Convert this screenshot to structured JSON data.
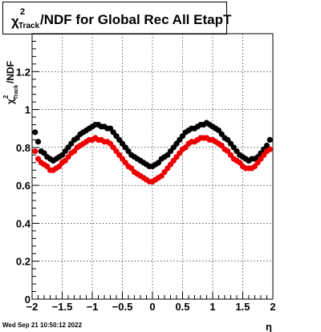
{
  "title": {
    "chi": "χ",
    "sup": "2",
    "sub": "Track",
    "rest": "/NDF for Global Rec All EtapT"
  },
  "timestamp": "Wed Sep 21 10:50:12 2022",
  "chart_data": {
    "type": "scatter",
    "title": "χ²_Track/NDF for Global Rec All EtapT",
    "xlabel": "η",
    "ylabel": {
      "chi": "χ",
      "sup": "2",
      "sub": "Track",
      "rest": "/NDF"
    },
    "xlim": [
      -2,
      2
    ],
    "ylim": [
      0,
      1.4
    ],
    "x_ticks": [
      {
        "v": -2,
        "label": "−2"
      },
      {
        "v": -1.5,
        "label": "−1.5"
      },
      {
        "v": -1,
        "label": "−1"
      },
      {
        "v": -0.5,
        "label": "−0.5"
      },
      {
        "v": 0,
        "label": "0"
      },
      {
        "v": 0.5,
        "label": "0.5"
      },
      {
        "v": 1,
        "label": "1"
      },
      {
        "v": 1.5,
        "label": "1.5"
      },
      {
        "v": 2,
        "label": "2"
      }
    ],
    "y_ticks": [
      {
        "v": 0,
        "label": "0"
      },
      {
        "v": 0.2,
        "label": "0.2"
      },
      {
        "v": 0.4,
        "label": "0.4"
      },
      {
        "v": 0.6,
        "label": "0.6"
      },
      {
        "v": 0.8,
        "label": "0.8"
      },
      {
        "v": 1,
        "label": "1"
      },
      {
        "v": 1.2,
        "label": "1.2"
      }
    ],
    "grid": true,
    "series": [
      {
        "color": "#000000",
        "x": [
          -1.95,
          -1.9,
          -1.85,
          -1.8,
          -1.75,
          -1.7,
          -1.65,
          -1.6,
          -1.55,
          -1.5,
          -1.45,
          -1.4,
          -1.35,
          -1.3,
          -1.25,
          -1.2,
          -1.15,
          -1.1,
          -1.05,
          -1.0,
          -0.95,
          -0.9,
          -0.85,
          -0.8,
          -0.75,
          -0.7,
          -0.65,
          -0.6,
          -0.55,
          -0.5,
          -0.45,
          -0.4,
          -0.35,
          -0.3,
          -0.25,
          -0.2,
          -0.15,
          -0.1,
          -0.05,
          0.0,
          0.05,
          0.1,
          0.15,
          0.2,
          0.25,
          0.3,
          0.35,
          0.4,
          0.45,
          0.5,
          0.55,
          0.6,
          0.65,
          0.7,
          0.75,
          0.8,
          0.85,
          0.9,
          0.95,
          1.0,
          1.05,
          1.1,
          1.15,
          1.2,
          1.25,
          1.3,
          1.35,
          1.4,
          1.45,
          1.5,
          1.55,
          1.6,
          1.65,
          1.7,
          1.75,
          1.8,
          1.85,
          1.9,
          1.95
        ],
        "y": [
          0.88,
          0.83,
          0.78,
          0.77,
          0.75,
          0.74,
          0.73,
          0.74,
          0.75,
          0.76,
          0.78,
          0.8,
          0.82,
          0.84,
          0.85,
          0.87,
          0.88,
          0.89,
          0.9,
          0.91,
          0.92,
          0.92,
          0.91,
          0.91,
          0.9,
          0.9,
          0.88,
          0.86,
          0.84,
          0.82,
          0.8,
          0.78,
          0.76,
          0.75,
          0.74,
          0.73,
          0.72,
          0.71,
          0.7,
          0.7,
          0.71,
          0.72,
          0.74,
          0.75,
          0.76,
          0.78,
          0.8,
          0.82,
          0.84,
          0.86,
          0.88,
          0.89,
          0.9,
          0.9,
          0.91,
          0.92,
          0.92,
          0.93,
          0.92,
          0.91,
          0.9,
          0.89,
          0.87,
          0.85,
          0.84,
          0.82,
          0.8,
          0.78,
          0.76,
          0.75,
          0.74,
          0.73,
          0.74,
          0.74,
          0.75,
          0.77,
          0.79,
          0.81,
          0.84
        ]
      },
      {
        "color": "#ee0000",
        "x": [
          -1.95,
          -1.9,
          -1.85,
          -1.8,
          -1.75,
          -1.7,
          -1.65,
          -1.6,
          -1.55,
          -1.5,
          -1.45,
          -1.4,
          -1.35,
          -1.3,
          -1.25,
          -1.2,
          -1.15,
          -1.1,
          -1.05,
          -1.0,
          -0.95,
          -0.9,
          -0.85,
          -0.8,
          -0.75,
          -0.7,
          -0.65,
          -0.6,
          -0.55,
          -0.5,
          -0.45,
          -0.4,
          -0.35,
          -0.3,
          -0.25,
          -0.2,
          -0.15,
          -0.1,
          -0.05,
          0.0,
          0.05,
          0.1,
          0.15,
          0.2,
          0.25,
          0.3,
          0.35,
          0.4,
          0.45,
          0.5,
          0.55,
          0.6,
          0.65,
          0.7,
          0.75,
          0.8,
          0.85,
          0.9,
          0.95,
          1.0,
          1.05,
          1.1,
          1.15,
          1.2,
          1.25,
          1.3,
          1.35,
          1.4,
          1.45,
          1.5,
          1.55,
          1.6,
          1.65,
          1.7,
          1.75,
          1.8,
          1.85,
          1.9,
          1.95
        ],
        "y": [
          0.78,
          0.74,
          0.72,
          0.71,
          0.7,
          0.68,
          0.68,
          0.69,
          0.7,
          0.72,
          0.73,
          0.75,
          0.77,
          0.78,
          0.8,
          0.81,
          0.82,
          0.83,
          0.84,
          0.84,
          0.85,
          0.84,
          0.84,
          0.83,
          0.83,
          0.82,
          0.8,
          0.78,
          0.76,
          0.74,
          0.72,
          0.7,
          0.69,
          0.67,
          0.66,
          0.65,
          0.64,
          0.63,
          0.62,
          0.62,
          0.63,
          0.64,
          0.65,
          0.67,
          0.69,
          0.71,
          0.73,
          0.75,
          0.77,
          0.79,
          0.8,
          0.82,
          0.83,
          0.83,
          0.84,
          0.85,
          0.85,
          0.85,
          0.84,
          0.84,
          0.83,
          0.82,
          0.81,
          0.79,
          0.78,
          0.76,
          0.74,
          0.73,
          0.72,
          0.7,
          0.69,
          0.69,
          0.69,
          0.7,
          0.72,
          0.74,
          0.76,
          0.78,
          0.79
        ]
      }
    ]
  }
}
